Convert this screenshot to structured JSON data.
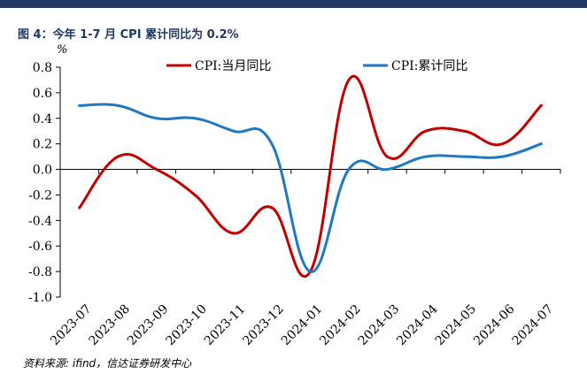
{
  "header": {
    "title": "图 4：今年 1-7 月 CPI 累计同比为 0.2%"
  },
  "source_note": "资料来源: ifind，信达证券研发中心",
  "colors": {
    "top_bar": "#1f3864",
    "title": "#1f3864",
    "series_monthly": "#c00000",
    "series_cumulative": "#1f78c1"
  },
  "chart_data": {
    "type": "line",
    "title": "",
    "ylabel": "%",
    "xlabel": "",
    "ylim": [
      -1.0,
      0.8
    ],
    "yticks": [
      -1.0,
      -0.8,
      -0.6,
      -0.4,
      -0.2,
      0.0,
      0.2,
      0.4,
      0.6,
      0.8
    ],
    "ytick_labels": [
      "-1.0",
      "-0.8",
      "-0.6",
      "-0.4",
      "-0.2",
      "0.0",
      "0.2",
      "0.4",
      "0.6",
      "0.8"
    ],
    "categories": [
      "2023-07",
      "2023-08",
      "2023-09",
      "2023-10",
      "2023-11",
      "2023-12",
      "2024-01",
      "2024-02",
      "2024-03",
      "2024-04",
      "2024-05",
      "2024-06",
      "2024-07"
    ],
    "series": [
      {
        "name": "CPI:当月同比",
        "color": "#c00000",
        "values": [
          -0.3,
          0.1,
          0.0,
          -0.2,
          -0.5,
          -0.3,
          -0.8,
          0.7,
          0.1,
          0.3,
          0.3,
          0.2,
          0.5
        ]
      },
      {
        "name": "CPI:累计同比",
        "color": "#1f78c1",
        "values": [
          0.5,
          0.5,
          0.4,
          0.4,
          0.3,
          0.2,
          -0.8,
          0.0,
          0.0,
          0.1,
          0.1,
          0.1,
          0.2
        ]
      }
    ],
    "grid": false,
    "legend_position": "top"
  }
}
